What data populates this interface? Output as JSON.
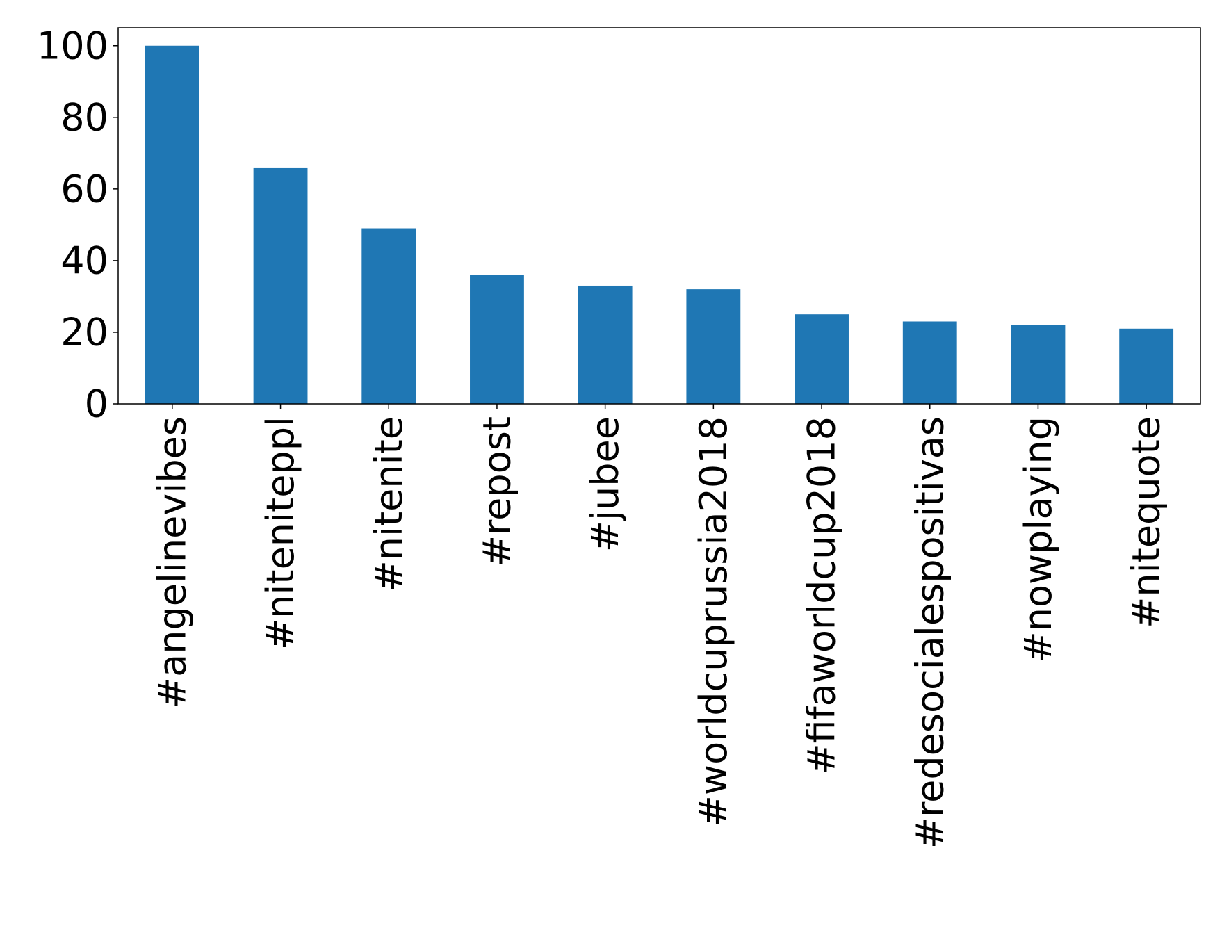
{
  "chart_data": {
    "type": "bar",
    "categories": [
      "#angelinevibes",
      "#nitenitepp​l",
      "#nitenite",
      "#repost",
      "#jubee",
      "#worldcuprussia2018",
      "#fifaworldcup2018",
      "#redesocialespositivas",
      "#nowplaying",
      "#nitequote"
    ],
    "values": [
      100,
      66,
      49,
      36,
      33,
      32,
      25,
      23,
      22,
      21
    ],
    "ylim": [
      0,
      105
    ],
    "yticks": [
      "0",
      "20",
      "40",
      "60",
      "80",
      "100"
    ],
    "bar_color": "#1f77b4",
    "grid": false
  }
}
